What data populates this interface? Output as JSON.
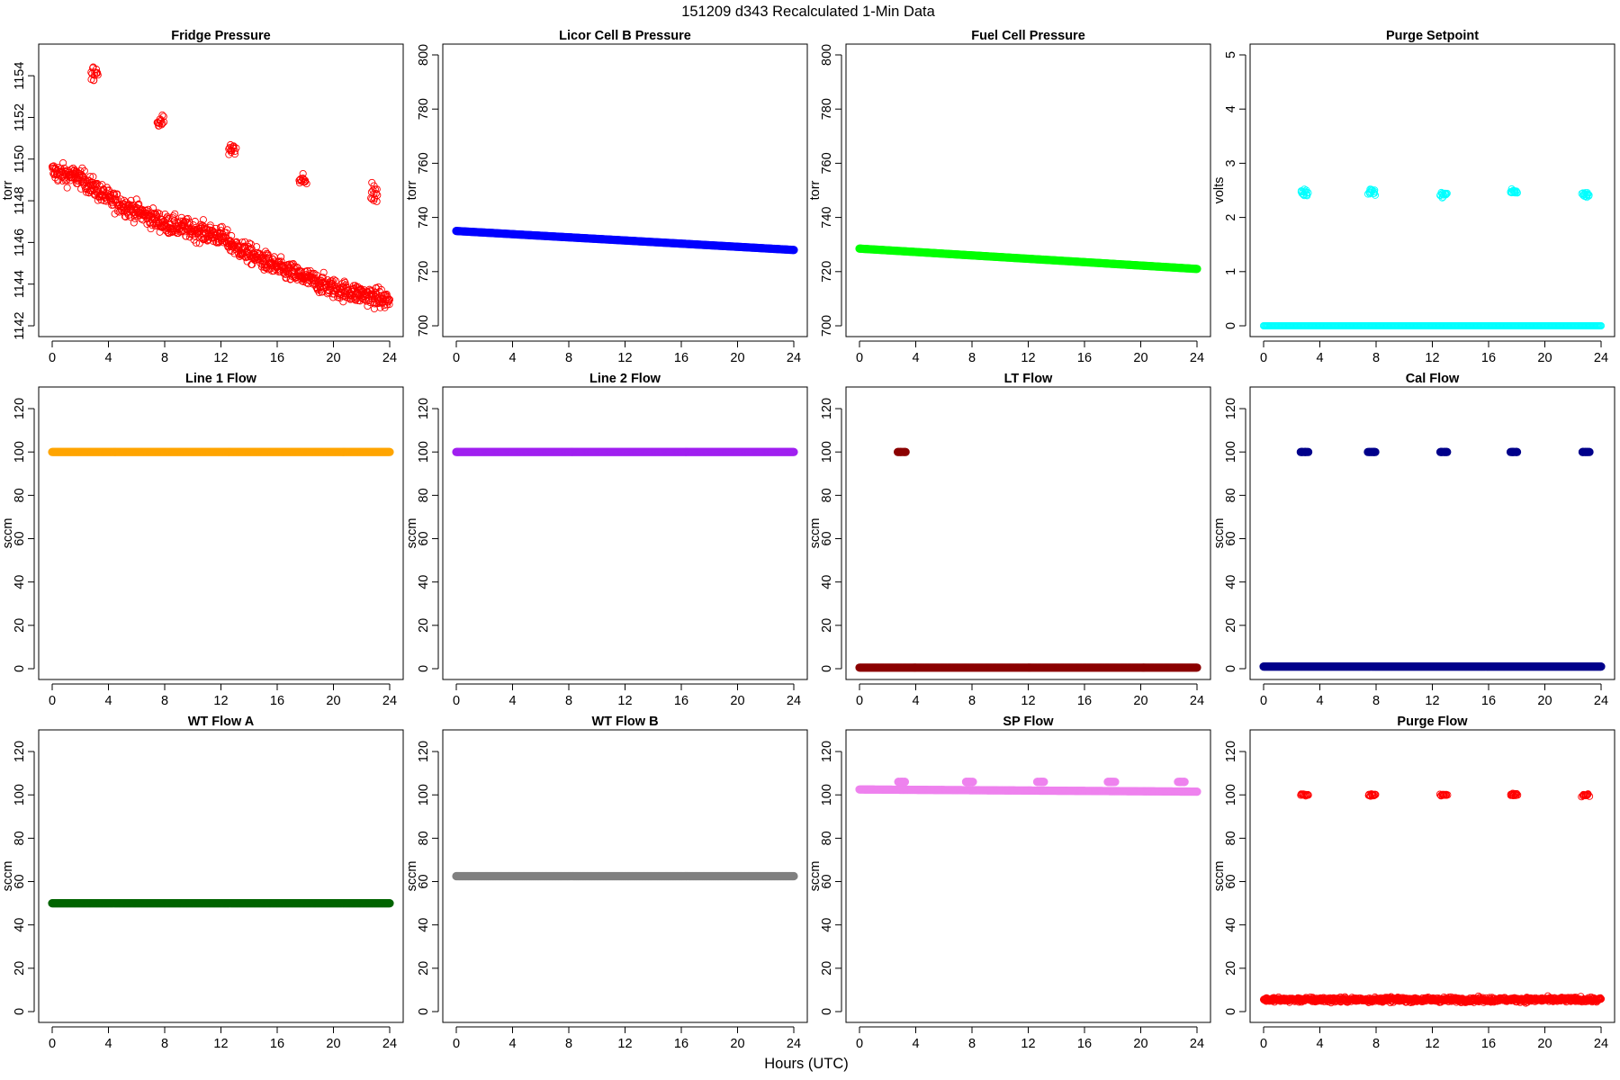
{
  "figure": {
    "title": "151209    d343    Recalculated 1-Min Data",
    "xlabel": "Hours (UTC)"
  },
  "chart_data": [
    {
      "type": "scatter",
      "title": "Fridge Pressure",
      "ylabel": "torr",
      "color": "#ff0000",
      "marker": "open",
      "xlim": [
        0,
        24
      ],
      "ylim": [
        1142,
        1155
      ],
      "yticks": [
        1142,
        1144,
        1146,
        1148,
        1150,
        1152,
        1154
      ],
      "xticks": [
        0,
        4,
        8,
        12,
        16,
        20,
        24
      ],
      "series": [
        {
          "name": "baseline",
          "kind": "line",
          "x": [
            0,
            2,
            4,
            6,
            8,
            10,
            12,
            13,
            16,
            20,
            24
          ],
          "y": [
            1149.4,
            1149.1,
            1148.1,
            1147.5,
            1146.9,
            1146.6,
            1146.3,
            1145.8,
            1144.8,
            1143.8,
            1143.2
          ],
          "noise": 0.55
        },
        {
          "name": "cal_spikes",
          "kind": "clusters",
          "clusters": [
            {
              "x": 3.0,
              "y": 1154.0,
              "spread": 0.8
            },
            {
              "x": 7.7,
              "y": 1151.8,
              "spread": 0.4
            },
            {
              "x": 12.8,
              "y": 1150.5,
              "spread": 0.4
            },
            {
              "x": 17.8,
              "y": 1149.1,
              "spread": 0.3
            },
            {
              "x": 22.9,
              "y": 1148.3,
              "spread": 0.5
            }
          ]
        }
      ]
    },
    {
      "type": "scatter",
      "title": "Licor Cell B Pressure",
      "ylabel": "torr",
      "color": "#0000ff",
      "marker": "filled",
      "xlim": [
        0,
        24
      ],
      "ylim": [
        700,
        800
      ],
      "yticks": [
        700,
        720,
        740,
        760,
        780,
        800
      ],
      "xticks": [
        0,
        4,
        8,
        12,
        16,
        20,
        24
      ],
      "series": [
        {
          "name": "pressure",
          "kind": "line",
          "x": [
            0,
            24
          ],
          "y": [
            735,
            728
          ],
          "noise": 0
        }
      ]
    },
    {
      "type": "scatter",
      "title": "Fuel Cell Pressure",
      "ylabel": "torr",
      "color": "#00ff00",
      "marker": "filled",
      "xlim": [
        0,
        24
      ],
      "ylim": [
        700,
        800
      ],
      "yticks": [
        700,
        720,
        740,
        760,
        780,
        800
      ],
      "xticks": [
        0,
        4,
        8,
        12,
        16,
        20,
        24
      ],
      "series": [
        {
          "name": "pressure",
          "kind": "line",
          "x": [
            0,
            24
          ],
          "y": [
            728.5,
            721
          ],
          "noise": 0
        }
      ]
    },
    {
      "type": "scatter",
      "title": "Purge Setpoint",
      "ylabel": "volts",
      "color": "#00ffff",
      "marker": "open",
      "xlim": [
        0,
        24
      ],
      "ylim": [
        0,
        5
      ],
      "yticks": [
        0,
        1,
        2,
        3,
        4,
        5
      ],
      "xticks": [
        0,
        4,
        8,
        12,
        16,
        20,
        24
      ],
      "series": [
        {
          "name": "baseline",
          "kind": "line",
          "x": [
            0,
            24
          ],
          "y": [
            0,
            0
          ],
          "noise": 0
        },
        {
          "name": "cal_spikes",
          "kind": "clusters",
          "clusters": [
            {
              "x": 2.9,
              "y": 2.45,
              "spread": 0.08
            },
            {
              "x": 7.7,
              "y": 2.47,
              "spread": 0.06
            },
            {
              "x": 12.8,
              "y": 2.43,
              "spread": 0.07
            },
            {
              "x": 17.8,
              "y": 2.47,
              "spread": 0.05
            },
            {
              "x": 22.9,
              "y": 2.43,
              "spread": 0.07
            }
          ]
        }
      ]
    },
    {
      "type": "scatter",
      "title": "Line 1 Flow",
      "ylabel": "sccm",
      "color": "#ffa500",
      "marker": "filled",
      "xlim": [
        0,
        24
      ],
      "ylim": [
        0,
        125
      ],
      "yticks": [
        0,
        20,
        40,
        60,
        80,
        100,
        120
      ],
      "xticks": [
        0,
        4,
        8,
        12,
        16,
        20,
        24
      ],
      "series": [
        {
          "name": "flow",
          "kind": "line",
          "x": [
            0,
            24
          ],
          "y": [
            100,
            100
          ],
          "noise": 0
        }
      ]
    },
    {
      "type": "scatter",
      "title": "Line 2 Flow",
      "ylabel": "sccm",
      "color": "#a020f0",
      "marker": "filled",
      "xlim": [
        0,
        24
      ],
      "ylim": [
        0,
        125
      ],
      "yticks": [
        0,
        20,
        40,
        60,
        80,
        100,
        120
      ],
      "xticks": [
        0,
        4,
        8,
        12,
        16,
        20,
        24
      ],
      "series": [
        {
          "name": "flow",
          "kind": "line",
          "x": [
            0,
            24
          ],
          "y": [
            100,
            100
          ],
          "noise": 0
        }
      ]
    },
    {
      "type": "scatter",
      "title": "LT Flow",
      "ylabel": "sccm",
      "color": "#8b0000",
      "marker": "filled",
      "xlim": [
        0,
        24
      ],
      "ylim": [
        0,
        125
      ],
      "yticks": [
        0,
        20,
        40,
        60,
        80,
        100,
        120
      ],
      "xticks": [
        0,
        4,
        8,
        12,
        16,
        20,
        24
      ],
      "series": [
        {
          "name": "baseline",
          "kind": "line",
          "x": [
            0,
            24
          ],
          "y": [
            0.5,
            0.5
          ],
          "noise": 0
        },
        {
          "name": "spike",
          "kind": "clusters",
          "clusters": [
            {
              "x": 3.0,
              "y": 100,
              "spread": 0
            }
          ]
        }
      ]
    },
    {
      "type": "scatter",
      "title": "Cal Flow",
      "ylabel": "sccm",
      "color": "#00008b",
      "marker": "filled",
      "xlim": [
        0,
        24
      ],
      "ylim": [
        0,
        125
      ],
      "yticks": [
        0,
        20,
        40,
        60,
        80,
        100,
        120
      ],
      "xticks": [
        0,
        4,
        8,
        12,
        16,
        20,
        24
      ],
      "series": [
        {
          "name": "baseline",
          "kind": "line",
          "x": [
            0,
            24
          ],
          "y": [
            1,
            1
          ],
          "noise": 0
        },
        {
          "name": "cal_spikes",
          "kind": "clusters",
          "clusters": [
            {
              "x": 2.9,
              "y": 100,
              "spread": 0
            },
            {
              "x": 7.7,
              "y": 100,
              "spread": 0
            },
            {
              "x": 12.8,
              "y": 100,
              "spread": 0
            },
            {
              "x": 17.8,
              "y": 100,
              "spread": 0
            },
            {
              "x": 22.9,
              "y": 100,
              "spread": 0
            }
          ]
        }
      ]
    },
    {
      "type": "scatter",
      "title": "WT Flow A",
      "ylabel": "sccm",
      "color": "#006400",
      "marker": "filled",
      "xlim": [
        0,
        24
      ],
      "ylim": [
        0,
        125
      ],
      "yticks": [
        0,
        20,
        40,
        60,
        80,
        100,
        120
      ],
      "xticks": [
        0,
        4,
        8,
        12,
        16,
        20,
        24
      ],
      "series": [
        {
          "name": "flow",
          "kind": "line",
          "x": [
            0,
            24
          ],
          "y": [
            50,
            50
          ],
          "noise": 0
        }
      ]
    },
    {
      "type": "scatter",
      "title": "WT Flow B",
      "ylabel": "sccm",
      "color": "#808080",
      "marker": "filled",
      "xlim": [
        0,
        24
      ],
      "ylim": [
        0,
        125
      ],
      "yticks": [
        0,
        20,
        40,
        60,
        80,
        100,
        120
      ],
      "xticks": [
        0,
        4,
        8,
        12,
        16,
        20,
        24
      ],
      "series": [
        {
          "name": "flow",
          "kind": "line",
          "x": [
            0,
            24
          ],
          "y": [
            62.5,
            62.5
          ],
          "noise": 0
        }
      ]
    },
    {
      "type": "scatter",
      "title": "SP Flow",
      "ylabel": "sccm",
      "color": "#ee82ee",
      "marker": "filled",
      "xlim": [
        0,
        24
      ],
      "ylim": [
        0,
        125
      ],
      "yticks": [
        0,
        20,
        40,
        60,
        80,
        100,
        120
      ],
      "xticks": [
        0,
        4,
        8,
        12,
        16,
        20,
        24
      ],
      "series": [
        {
          "name": "flow",
          "kind": "line",
          "x": [
            0,
            24
          ],
          "y": [
            102.5,
            101.5
          ],
          "noise": 0
        },
        {
          "name": "cal_spikes",
          "kind": "clusters",
          "clusters": [
            {
              "x": 3.0,
              "y": 106,
              "spread": 0
            },
            {
              "x": 7.8,
              "y": 106,
              "spread": 0
            },
            {
              "x": 12.9,
              "y": 106,
              "spread": 0
            },
            {
              "x": 17.9,
              "y": 106,
              "spread": 0
            },
            {
              "x": 22.9,
              "y": 106,
              "spread": 0
            }
          ]
        }
      ]
    },
    {
      "type": "scatter",
      "title": "Purge Flow",
      "ylabel": "sccm",
      "color": "#ff0000",
      "marker": "open",
      "xlim": [
        0,
        24
      ],
      "ylim": [
        0,
        125
      ],
      "yticks": [
        0,
        20,
        40,
        60,
        80,
        100,
        120
      ],
      "xticks": [
        0,
        4,
        8,
        12,
        16,
        20,
        24
      ],
      "series": [
        {
          "name": "baseline",
          "kind": "line",
          "x": [
            0,
            24
          ],
          "y": [
            5.5,
            5.5
          ],
          "noise": 1.3
        },
        {
          "name": "cal_spikes",
          "kind": "clusters",
          "clusters": [
            {
              "x": 2.9,
              "y": 100,
              "spread": 0.8
            },
            {
              "x": 7.7,
              "y": 100,
              "spread": 0.8
            },
            {
              "x": 12.8,
              "y": 100,
              "spread": 0.8
            },
            {
              "x": 17.8,
              "y": 100,
              "spread": 0.8
            },
            {
              "x": 22.9,
              "y": 100,
              "spread": 0.8
            }
          ]
        }
      ]
    }
  ]
}
